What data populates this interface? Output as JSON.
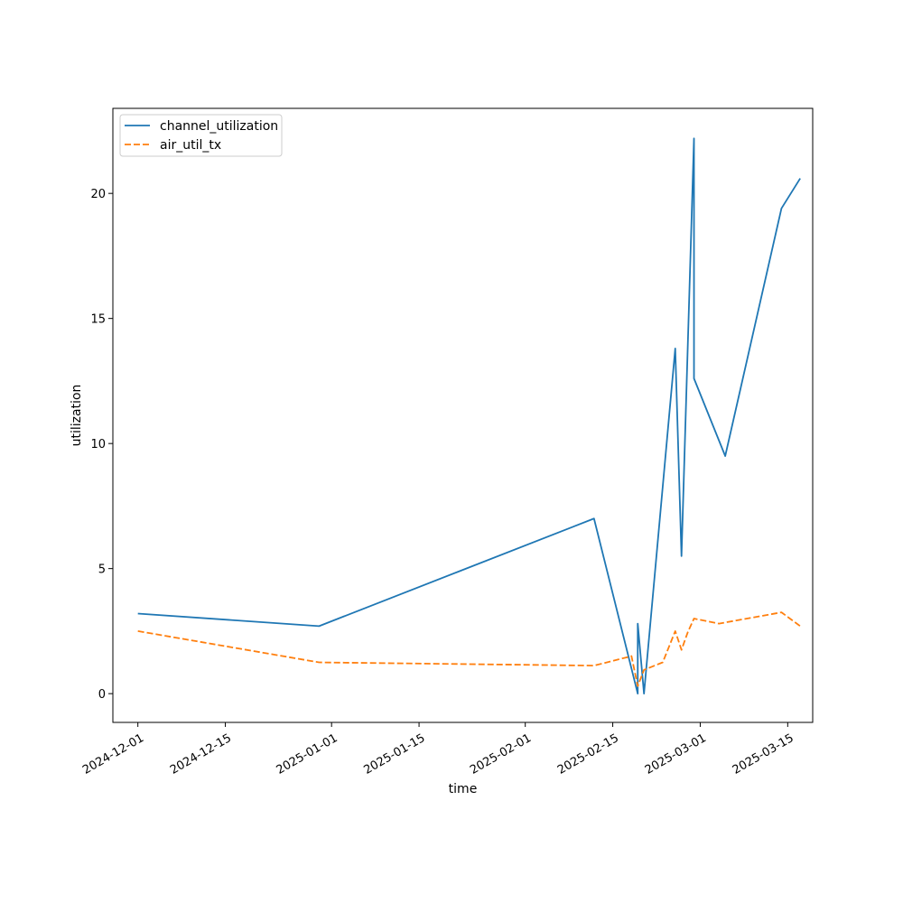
{
  "chart_data": {
    "type": "line",
    "title": "",
    "xlabel": "time",
    "ylabel": "utilization",
    "x_type": "date",
    "xlim": [
      "2024-11-27",
      "2025-03-19"
    ],
    "ylim": [
      -1.15,
      23.4
    ],
    "xticks": [
      "2024-12-01",
      "2024-12-15",
      "2025-01-01",
      "2025-01-15",
      "2025-02-01",
      "2025-02-15",
      "2025-03-01",
      "2025-03-15"
    ],
    "yticks": [
      0,
      5,
      10,
      15,
      20
    ],
    "grid": false,
    "legend_position": "top-left",
    "colors": {
      "channel_utilization": "#1f77b4",
      "air_util_tx": "#ff7f0e"
    },
    "series": [
      {
        "name": "channel_utilization",
        "line_style": "solid",
        "points": [
          [
            "2024-12-01",
            3.2
          ],
          [
            "2024-12-30",
            2.7
          ],
          [
            "2025-02-12",
            7.0
          ],
          [
            "2025-02-19",
            0.0
          ],
          [
            "2025-02-19",
            2.8
          ],
          [
            "2025-02-20",
            0.0
          ],
          [
            "2025-02-25",
            13.8
          ],
          [
            "2025-02-26",
            5.5
          ],
          [
            "2025-02-28",
            22.2
          ],
          [
            "2025-02-28",
            12.6
          ],
          [
            "2025-03-05",
            9.5
          ],
          [
            "2025-03-14",
            19.4
          ],
          [
            "2025-03-17",
            20.6
          ]
        ]
      },
      {
        "name": "air_util_tx",
        "line_style": "dashed",
        "points": [
          [
            "2024-12-01",
            2.5
          ],
          [
            "2024-12-30",
            1.25
          ],
          [
            "2025-02-12",
            1.12
          ],
          [
            "2025-02-18",
            1.5
          ],
          [
            "2025-02-19",
            0.3
          ],
          [
            "2025-02-20",
            0.95
          ],
          [
            "2025-02-23",
            1.25
          ],
          [
            "2025-02-25",
            2.5
          ],
          [
            "2025-02-26",
            1.75
          ],
          [
            "2025-02-27",
            2.45
          ],
          [
            "2025-02-28",
            3.0
          ],
          [
            "2025-03-04",
            2.8
          ],
          [
            "2025-03-14",
            3.25
          ],
          [
            "2025-03-17",
            2.7
          ]
        ]
      }
    ]
  }
}
